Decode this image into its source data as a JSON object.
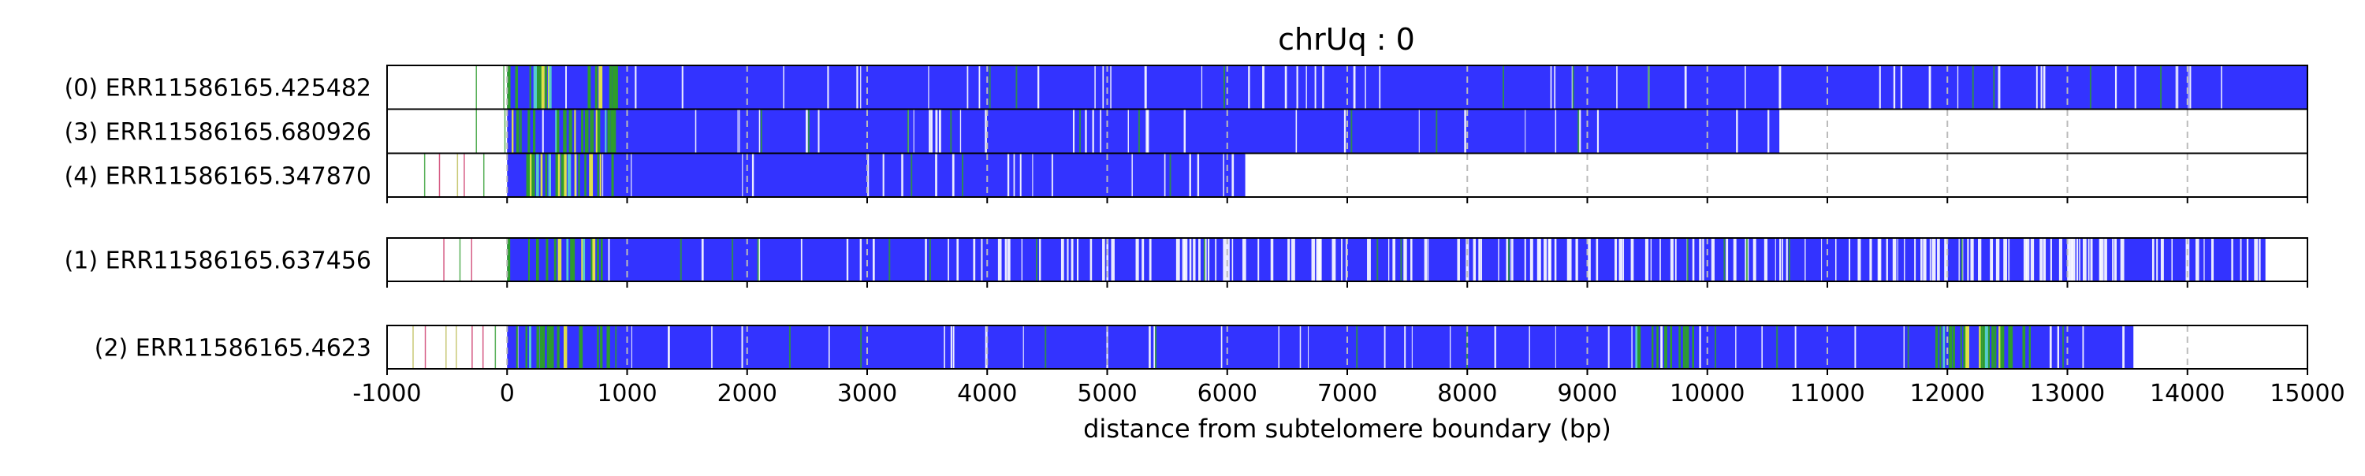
{
  "chart_data": {
    "type": "heatmap",
    "title": "chrUq : 0",
    "xlabel": "distance from subtelomere boundary (bp)",
    "xlim": [
      -1000,
      15000
    ],
    "xticks": [
      -1000,
      0,
      1000,
      2000,
      3000,
      4000,
      5000,
      6000,
      7000,
      8000,
      9000,
      10000,
      11000,
      12000,
      13000,
      14000,
      15000
    ],
    "grid": "vertical dashed at 1000 bp",
    "colors": {
      "fill": "#3333ff",
      "mark": "#2e9c2e",
      "accent": "#e0e04a",
      "minor": "#cc3366",
      "grid": "#bbbbbb"
    },
    "groups": [
      {
        "reads": [
          {
            "label": "(0) ERR11586165.425482",
            "start": 0,
            "end": 15000,
            "pre_start": -450
          },
          {
            "label": "(3) ERR11586165.680926",
            "start": 0,
            "end": 10600,
            "pre_start": -500
          },
          {
            "label": "(4) ERR11586165.347870",
            "start": 0,
            "end": 6150,
            "pre_start": -800
          }
        ]
      },
      {
        "reads": [
          {
            "label": "(1) ERR11586165.637456",
            "start": 0,
            "end": 14650,
            "pre_start": -800,
            "sparse_from": 3800
          }
        ]
      },
      {
        "reads": [
          {
            "label": "(2) ERR11586165.4623",
            "start": 0,
            "end": 13550,
            "pre_start": -880,
            "dense_marks": [
              [
                9400,
                9900
              ],
              [
                11900,
                12700
              ]
            ]
          }
        ]
      }
    ]
  }
}
